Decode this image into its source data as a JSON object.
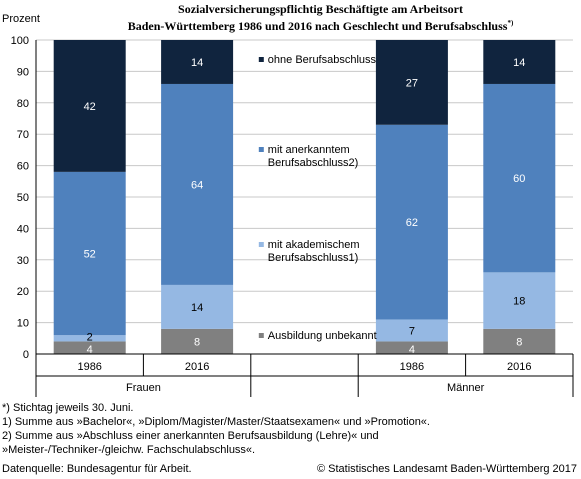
{
  "title": {
    "line1": "Sozialversicherungspflichtig Beschäftigte am Arbeitsort",
    "line2": "Baden-Württemberg 1986 und 2016 nach Geschlecht und Berufsabschluss",
    "marker": "*)"
  },
  "chart_data": {
    "type": "bar",
    "stacked": true,
    "ylabel": "Prozent",
    "ylim": [
      0,
      100
    ],
    "yticks": [
      0,
      10,
      20,
      30,
      40,
      50,
      60,
      70,
      80,
      90,
      100
    ],
    "grid": true,
    "categories": [
      "1986",
      "2016",
      "",
      "1986",
      "2016"
    ],
    "groups": [
      {
        "label": "Frauen",
        "categories": [
          "1986",
          "2016"
        ]
      },
      {
        "label": "Männer",
        "categories": [
          "1986",
          "2016"
        ]
      }
    ],
    "legend_position": "inside-center",
    "series": [
      {
        "name": "Ausbildung unbekannt",
        "color": "#808080",
        "values": [
          4,
          8,
          null,
          4,
          8
        ]
      },
      {
        "name": "mit akademischem Berufsabschluss1)",
        "color": "#95b8e3",
        "values": [
          2,
          14,
          null,
          7,
          18
        ]
      },
      {
        "name": "mit anerkanntem Berufsabschluss2)",
        "color": "#4f81bd",
        "values": [
          52,
          64,
          null,
          62,
          60
        ]
      },
      {
        "name": "ohne Berufsabschluss",
        "color": "#10243e",
        "values": [
          42,
          14,
          null,
          27,
          14
        ]
      }
    ],
    "legend": [
      {
        "lines": [
          "ohne Berufsabschluss"
        ],
        "color": "#10243e"
      },
      {
        "lines": [
          "mit anerkanntem",
          "Berufsabschluss2)"
        ],
        "color": "#4f81bd"
      },
      {
        "lines": [
          "mit akademischem",
          "Berufsabschluss1)"
        ],
        "color": "#95b8e3"
      },
      {
        "lines": [
          "Ausbildung unbekannt"
        ],
        "color": "#808080"
      }
    ]
  },
  "notes": [
    "*) Stichtag jeweils 30. Juni.",
    "1) Summe aus »Bachelor«, »Diplom/Magister/Master/Staatsexamen« und »Promotion«.",
    "2) Summe aus »Abschluss einer anerkannten Berufsausbildung (Lehre)« und",
    "»Meister-/Techniker-/gleichw. Fachschulabschluss«."
  ],
  "source": "Datenquelle: Bundesagentur für Arbeit.",
  "copyright": "© Statistisches Landesamt Baden-Württemberg 2017"
}
